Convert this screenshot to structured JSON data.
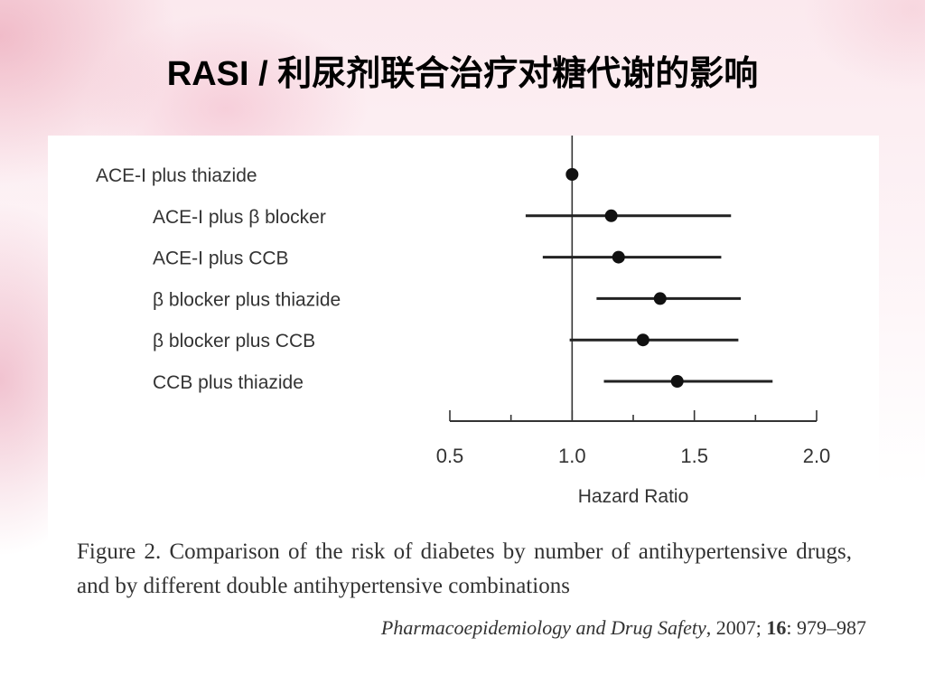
{
  "slide": {
    "title": "RASI / 利尿剂联合治疗对糖代谢的影响"
  },
  "figure": {
    "caption": "Figure 2.  Comparison of the risk of diabetes by number of antihypertensive drugs, and by different double antihypertensive combinations",
    "citation": {
      "journal": "Pharmacoepidemiology and Drug Safety",
      "year_text": ", 2007; ",
      "volume": "16",
      "pages": ": 979–987"
    }
  },
  "chart_data": {
    "type": "scatter",
    "subtype": "forest-plot",
    "xlabel": "Hazard Ratio",
    "xlim": [
      0.5,
      2.0
    ],
    "xticks": [
      "0.5",
      "1.0",
      "1.5",
      "2.0"
    ],
    "xtick_values": [
      0.5,
      1.0,
      1.5,
      2.0
    ],
    "reference_line": 1.0,
    "categories": [
      "ACE-I plus thiazide",
      "ACE-I plus β blocker",
      "ACE-I plus CCB",
      "β blocker plus thiazide",
      "β blocker plus CCB",
      "CCB plus thiazide"
    ],
    "series": [
      {
        "hr": [
          1.0,
          1.16,
          1.19,
          1.36,
          1.29,
          1.43
        ],
        "lower": [
          null,
          0.81,
          0.88,
          1.1,
          0.99,
          1.13
        ],
        "upper": [
          null,
          1.65,
          1.61,
          1.69,
          1.68,
          1.82
        ]
      }
    ],
    "grid": false
  }
}
